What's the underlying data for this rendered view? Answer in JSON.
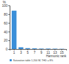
{
  "chart_data": {
    "type": "bar",
    "y_label": "%",
    "x_label": "Harmonic rank",
    "categories": [
      "1",
      "3",
      "5",
      "7",
      "9",
      "11",
      "13",
      "15"
    ],
    "series": [
      {
        "name": "Saturation table 1,200 W, THD = 8%",
        "color": "#3a8fd9",
        "values": [
          88,
          4,
          2,
          1.5,
          1,
          1,
          0.8,
          0.5
        ]
      }
    ],
    "ylim": [
      0,
      100
    ],
    "yticks": [
      0,
      20,
      40,
      60,
      80,
      100
    ],
    "grid": false,
    "legend": "bottom"
  }
}
